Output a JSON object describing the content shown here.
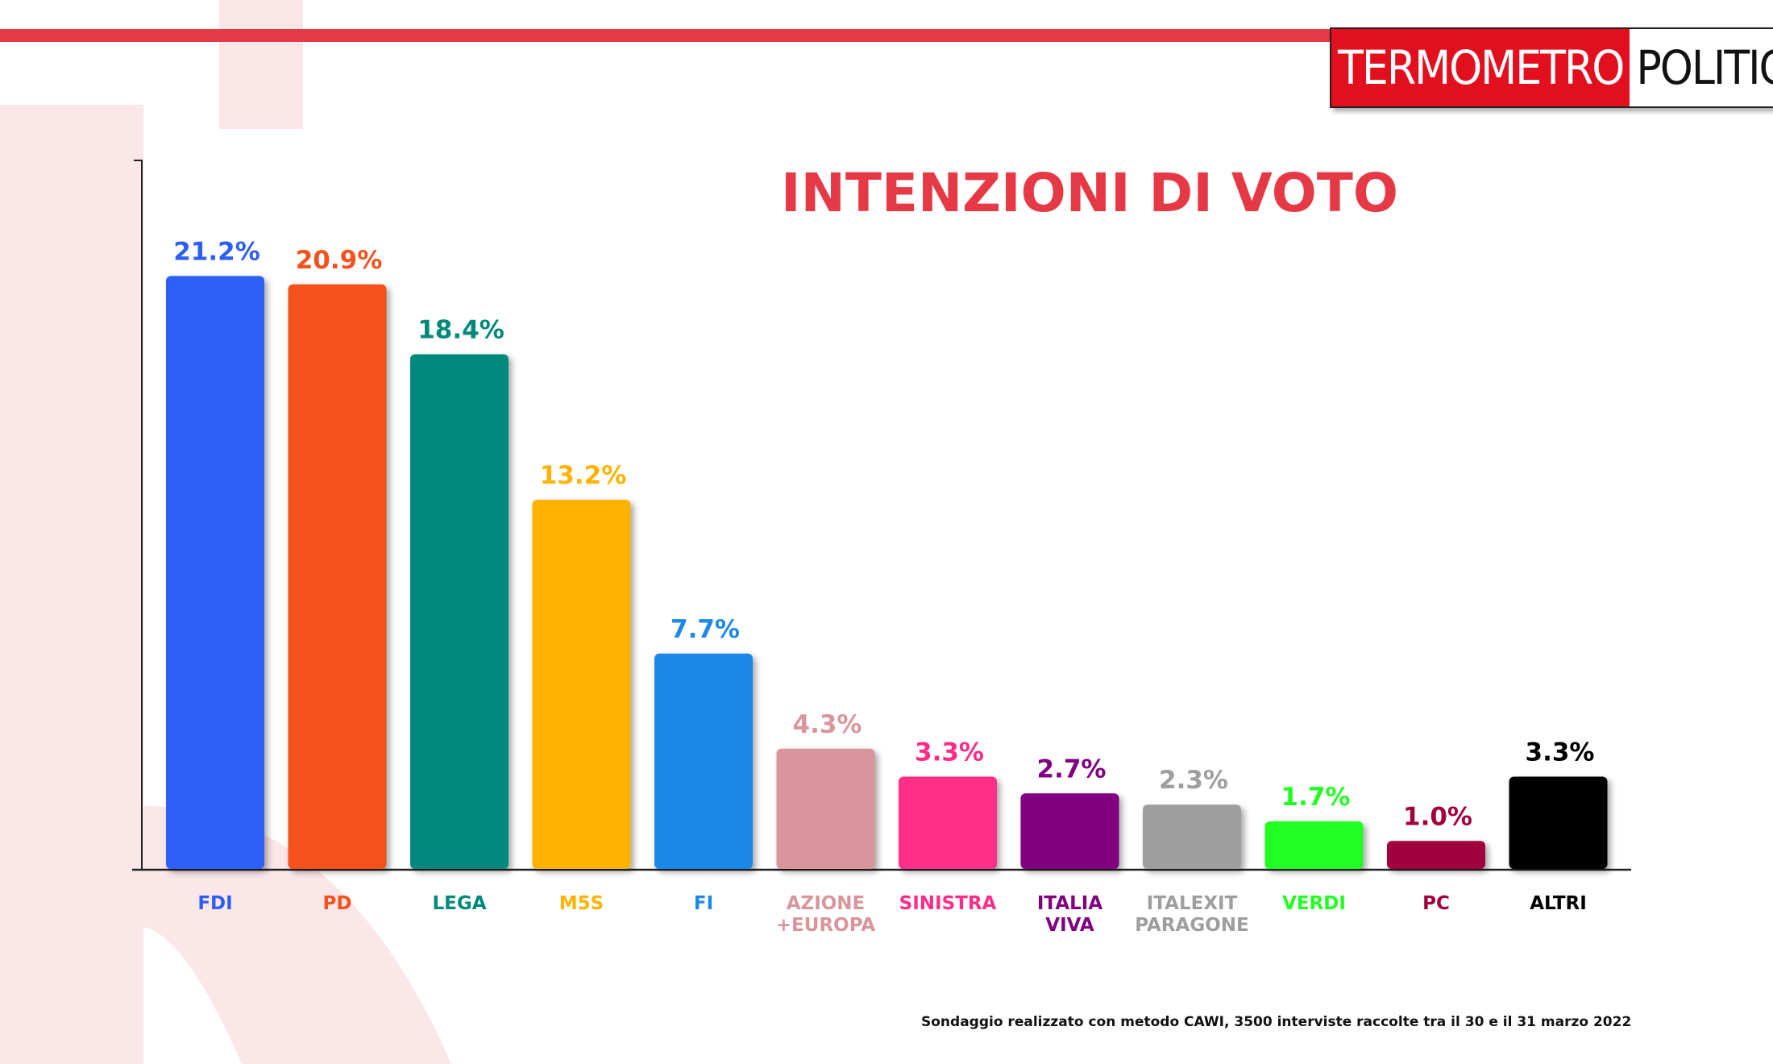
{
  "brand": {
    "logo_left": "TERMOMETRO",
    "logo_right": "POLITICO",
    "accent": "#e63946",
    "logo_red": "#e2101e"
  },
  "footnote": "Sondaggio realizzato con metodo CAWI, 3500 interviste raccolte tra il 30 e il 31 marzo 2022",
  "chart_data": {
    "type": "bar",
    "title": "INTENZIONI DI VOTO",
    "title_color": "#e63946",
    "xlabel": "",
    "ylabel": "",
    "ylim": [
      0,
      25
    ],
    "grid": false,
    "legend": "none",
    "categories": [
      {
        "label": "FDI",
        "lines": [
          "FDI"
        ],
        "value": 21.2,
        "value_label": "21.2%",
        "color": "#2d5ef6"
      },
      {
        "label": "PD",
        "lines": [
          "PD"
        ],
        "value": 20.9,
        "value_label": "20.9%",
        "color": "#f4511e"
      },
      {
        "label": "LEGA",
        "lines": [
          "LEGA"
        ],
        "value": 18.4,
        "value_label": "18.4%",
        "color": "#00897b"
      },
      {
        "label": "M5S",
        "lines": [
          "M5S"
        ],
        "value": 13.2,
        "value_label": "13.2%",
        "color": "#ffb300"
      },
      {
        "label": "FI",
        "lines": [
          "FI"
        ],
        "value": 7.7,
        "value_label": "7.7%",
        "color": "#1e88e5"
      },
      {
        "label": "AZIONE +EUROPA",
        "lines": [
          "AZIONE",
          "+EUROPA"
        ],
        "value": 4.3,
        "value_label": "4.3%",
        "color": "#d9959c"
      },
      {
        "label": "SINISTRA",
        "lines": [
          "SINISTRA"
        ],
        "value": 3.3,
        "value_label": "3.3%",
        "color": "#ff2d87"
      },
      {
        "label": "ITALIA VIVA",
        "lines": [
          "ITALIA",
          "VIVA"
        ],
        "value": 2.7,
        "value_label": "2.7%",
        "color": "#800080"
      },
      {
        "label": "ITALEXIT PARAGONE",
        "lines": [
          "ITALEXIT",
          "PARAGONE"
        ],
        "value": 2.3,
        "value_label": "2.3%",
        "color": "#9e9e9e"
      },
      {
        "label": "VERDI",
        "lines": [
          "VERDI"
        ],
        "value": 1.7,
        "value_label": "1.7%",
        "color": "#22ff22"
      },
      {
        "label": "PC",
        "lines": [
          "PC"
        ],
        "value": 1.0,
        "value_label": "1.0%",
        "color": "#a0003c"
      },
      {
        "label": "ALTRI",
        "lines": [
          "ALTRI"
        ],
        "value": 3.3,
        "value_label": "3.3%",
        "color": "#000000"
      }
    ]
  }
}
